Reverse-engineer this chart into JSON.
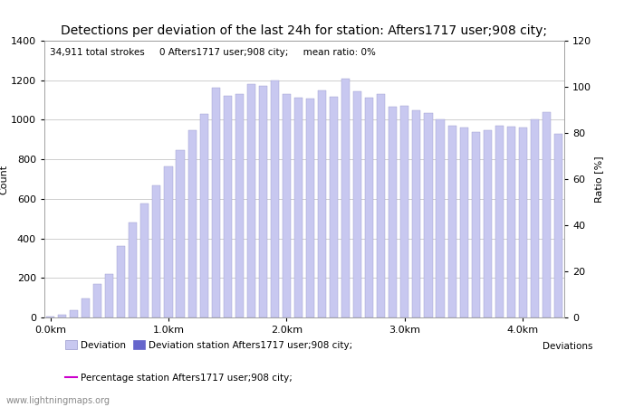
{
  "title": "Detections per deviation of the last 24h for station: Afters1717 user;908 city;",
  "annotation": "34,911 total strokes     0 Afters1717 user;908 city;     mean ratio: 0%",
  "xlabel_ticks": [
    "0.0km",
    "1.0km",
    "2.0km",
    "3.0km",
    "4.0km"
  ],
  "ylabel_left": "Count",
  "ylabel_right": "Ratio [%]",
  "legend_label_right": "Deviations",
  "bar_values": [
    5,
    12,
    35,
    95,
    170,
    220,
    360,
    480,
    578,
    667,
    765,
    845,
    948,
    1030,
    1160,
    1120,
    1130,
    1180,
    1170,
    1200,
    1130,
    1110,
    1105,
    1150,
    1115,
    1210,
    1145,
    1110,
    1130,
    1065,
    1070,
    1050,
    1035,
    1000,
    970,
    960,
    940,
    945,
    970,
    965,
    960,
    1000,
    1040,
    930
  ],
  "bar_color_light": "#c8c8f0",
  "bar_color_dark": "#6666cc",
  "bar_edge_color": "#9999cc",
  "ylim_left": [
    0,
    1400
  ],
  "ylim_right": [
    0,
    120
  ],
  "yticks_left": [
    0,
    200,
    400,
    600,
    800,
    1000,
    1200,
    1400
  ],
  "yticks_right": [
    0,
    20,
    40,
    60,
    80,
    100,
    120
  ],
  "grid_color": "#bbbbbb",
  "background_color": "#ffffff",
  "watermark": "www.lightningmaps.org",
  "legend1_label": "Deviation",
  "legend2_label": "Deviation station Afters1717 user;908 city;",
  "legend3_label": "Percentage station Afters1717 user;908 city;",
  "line_color": "#cc00cc",
  "title_fontsize": 10,
  "annotation_fontsize": 7.5,
  "axis_fontsize": 8,
  "tick_fontsize": 8
}
